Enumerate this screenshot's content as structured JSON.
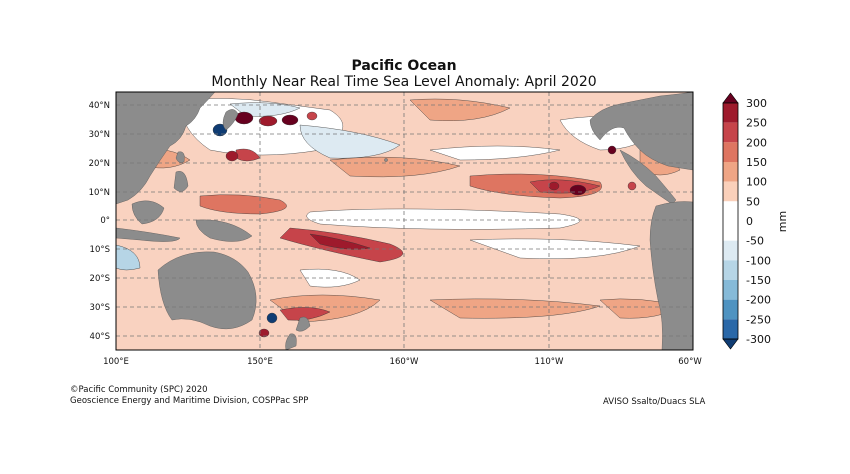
{
  "map": {
    "title": "Pacific Ocean",
    "subtitle": "Monthly Near Real Time Sea Level Anomaly: April 2020",
    "lon_ticks": [
      "100°E",
      "150°E",
      "160°W",
      "110°W",
      "60°W"
    ],
    "lat_ticks": [
      "40°N",
      "30°N",
      "20°N",
      "10°N",
      "0°",
      "10°S",
      "20°S",
      "30°S",
      "40°S"
    ],
    "extent": {
      "lon_min_east": 100,
      "lon_max_east": 300,
      "lat_min": -45,
      "lat_max": 44
    },
    "grid": "dashed",
    "colors": {
      "land": "#8c8c8c",
      "ocean_base": "#f9d2c0"
    }
  },
  "colorbar": {
    "unit": "mm",
    "tick_labels": [
      "300",
      "250",
      "200",
      "150",
      "100",
      "50",
      "0",
      "-50",
      "-100",
      "-150",
      "-200",
      "-250",
      "-300"
    ],
    "colors": [
      "#67001f",
      "#9e1a2c",
      "#c6444a",
      "#de7561",
      "#efa585",
      "#fad0ba",
      "#ffffff",
      "#ddeaf2",
      "#b6d5e6",
      "#86bad8",
      "#4f93c1",
      "#2a68a8",
      "#0f3c73"
    ]
  },
  "credits": {
    "line1": "©Pacific Community (SPC) 2020",
    "line2": "Geoscience Energy and Maritime Division, COSPPac SPP",
    "source": "AVISO Ssalto/Duacs SLA"
  }
}
